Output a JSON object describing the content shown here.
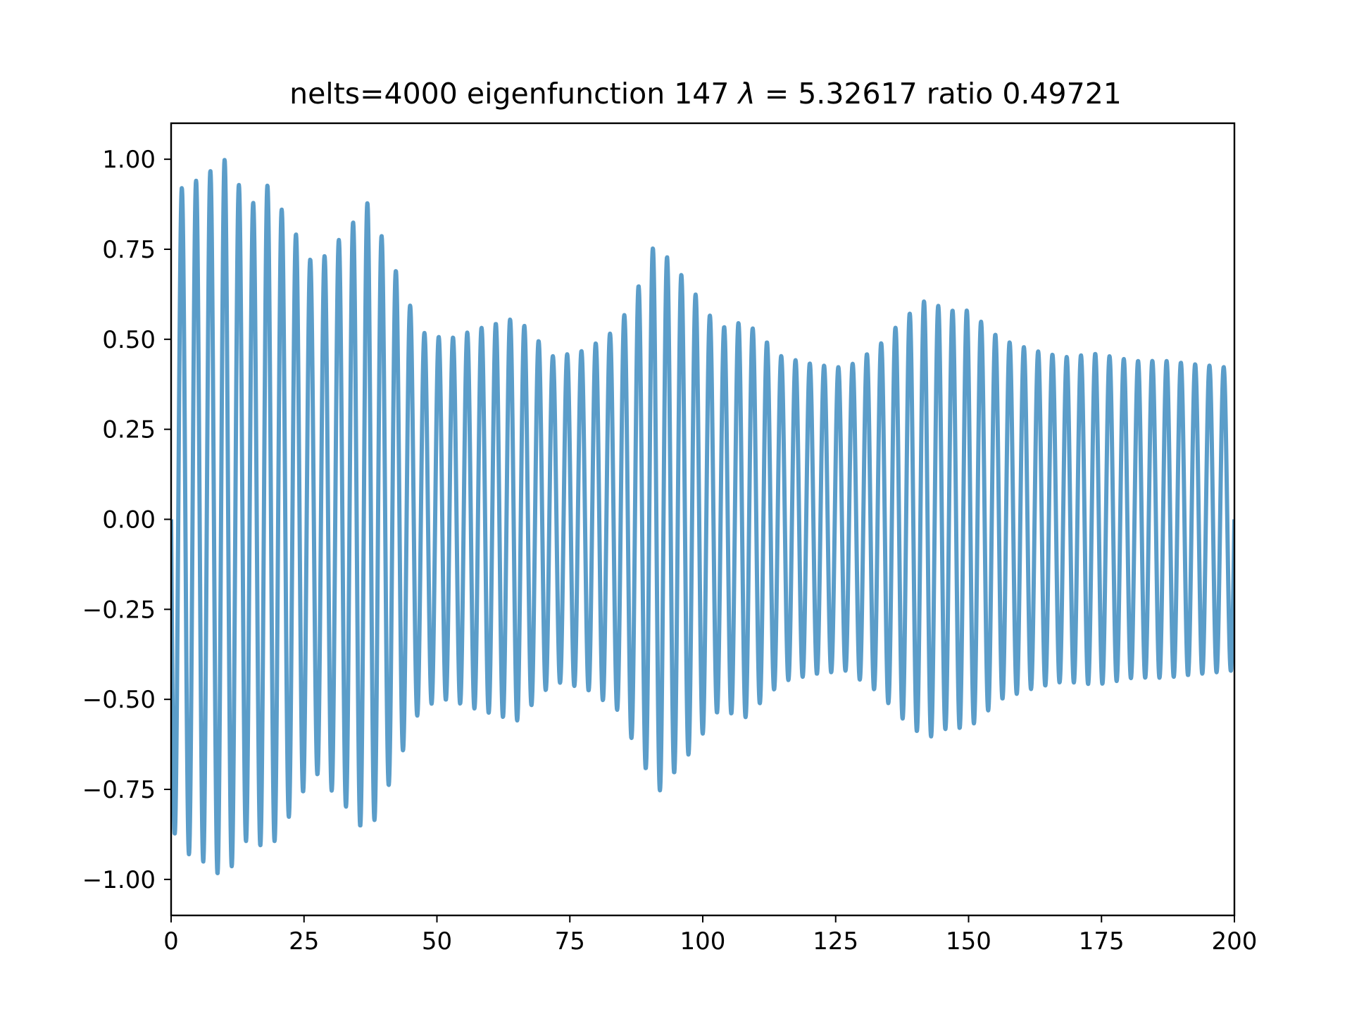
{
  "chart_data": {
    "type": "line",
    "title": "nelts=4000  eigenfunction 147  λ = 5.32617 ratio 0.49721",
    "title_parts": {
      "prefix": "nelts=4000  eigenfunction 147  ",
      "lambda": "λ",
      "equals": " = ",
      "suffix": "5.32617 ratio 0.49721"
    },
    "xlabel": "",
    "ylabel": "",
    "xlim": [
      0,
      200
    ],
    "ylim": [
      -1.1,
      1.1
    ],
    "x_ticks": [
      0,
      25,
      50,
      75,
      100,
      125,
      150,
      175,
      200
    ],
    "x_tick_labels": [
      "0",
      "25",
      "50",
      "75",
      "100",
      "125",
      "150",
      "175",
      "200"
    ],
    "y_ticks": [
      1.0,
      0.75,
      0.5,
      0.25,
      0.0,
      -0.25,
      -0.5,
      -0.75,
      -1.0
    ],
    "y_tick_labels": [
      "1.00",
      "0.75",
      "0.50",
      "0.25",
      "0.00",
      "−0.25",
      "−0.50",
      "−0.75",
      "−1.00"
    ],
    "grid": false,
    "legend": "none",
    "line_color": "#5b9dc9",
    "series": [
      {
        "samples": 4001,
        "x_range": [
          0,
          200
        ],
        "frequency_cycles_per_unit": 0.3725,
        "envelope_peaks": [
          [
            0,
            0.85
          ],
          [
            2,
            0.92
          ],
          [
            6,
            0.95
          ],
          [
            10,
            1.0
          ],
          [
            15,
            0.87
          ],
          [
            18,
            0.93
          ],
          [
            22,
            0.83
          ],
          [
            27,
            0.7
          ],
          [
            33,
            0.8
          ],
          [
            37,
            0.88
          ],
          [
            42,
            0.7
          ],
          [
            47,
            0.52
          ],
          [
            52,
            0.5
          ],
          [
            58,
            0.53
          ],
          [
            65,
            0.56
          ],
          [
            72,
            0.45
          ],
          [
            78,
            0.47
          ],
          [
            84,
            0.53
          ],
          [
            89,
            0.68
          ],
          [
            91,
            0.77
          ],
          [
            97,
            0.66
          ],
          [
            103,
            0.53
          ],
          [
            108,
            0.55
          ],
          [
            115,
            0.45
          ],
          [
            121,
            0.43
          ],
          [
            127,
            0.42
          ],
          [
            133,
            0.48
          ],
          [
            138,
            0.56
          ],
          [
            142,
            0.61
          ],
          [
            146,
            0.58
          ],
          [
            150,
            0.58
          ],
          [
            156,
            0.5
          ],
          [
            162,
            0.47
          ],
          [
            168,
            0.45
          ],
          [
            174,
            0.46
          ],
          [
            181,
            0.44
          ],
          [
            187,
            0.44
          ],
          [
            193,
            0.43
          ],
          [
            200,
            0.42
          ]
        ],
        "endpoints": {
          "start_y": 0.0,
          "end_y": 0.0
        }
      }
    ]
  }
}
